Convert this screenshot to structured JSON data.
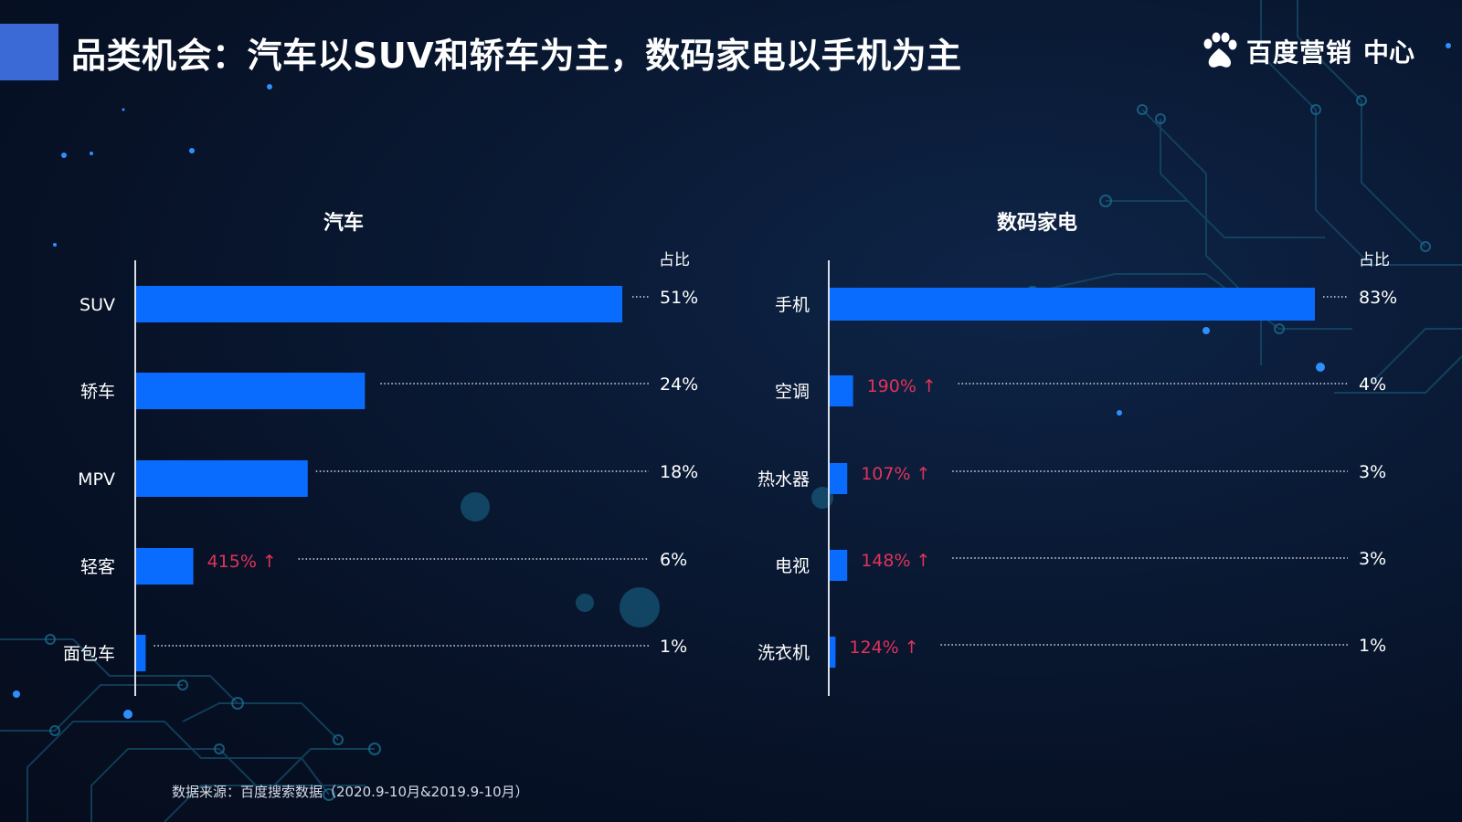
{
  "header": {
    "title": "品类机会：汽车以SUV和轿车为主，数码家电以手机为主",
    "brand_name": "百度营销",
    "brand_suffix": "中心"
  },
  "footer": {
    "source": "数据来源：百度搜索数据（2020.9-10月&2019.9-10月）"
  },
  "colors": {
    "bar": "#0a6cff",
    "growth": "#e0335a",
    "text": "#ffffff",
    "accent": "#3b6ad6"
  },
  "chart_data": [
    {
      "type": "bar",
      "orientation": "horizontal",
      "title": "汽车",
      "value_header": "占比",
      "categories": [
        "SUV",
        "轿车",
        "MPV",
        "轻客",
        "面包车"
      ],
      "values": [
        51,
        24,
        18,
        6,
        1
      ],
      "value_labels": [
        "51%",
        "24%",
        "18%",
        "6%",
        "1%"
      ],
      "growth_labels": [
        null,
        null,
        null,
        "415% ↑",
        null
      ],
      "xlim": [
        0,
        51
      ],
      "grid": false
    },
    {
      "type": "bar",
      "orientation": "horizontal",
      "title": "数码家电",
      "value_header": "占比",
      "categories": [
        "手机",
        "空调",
        "热水器",
        "电视",
        "洗衣机"
      ],
      "values": [
        83,
        4,
        3,
        3,
        1
      ],
      "value_labels": [
        "83%",
        "4%",
        "3%",
        "3%",
        "1%"
      ],
      "growth_labels": [
        null,
        "190% ↑",
        "107% ↑",
        "148% ↑",
        "124% ↑"
      ],
      "xlim": [
        0,
        83
      ],
      "grid": false
    }
  ]
}
